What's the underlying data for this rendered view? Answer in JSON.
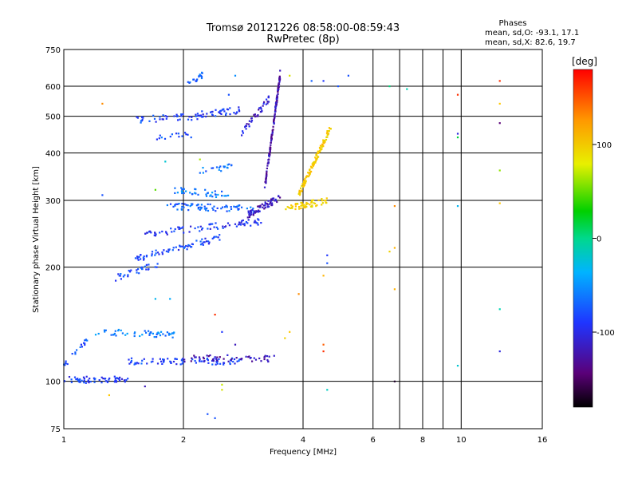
{
  "chart_data": {
    "type": "scatter",
    "title": "Tromsø 20121226 08:58:00-08:59:43",
    "subtitle": "RwPretec (8p)",
    "xlabel": "Frequency [MHz]",
    "ylabel": "Stationary phase Virtual Height [km]",
    "x_scale": "log",
    "y_scale": "log",
    "xlim": [
      1,
      16
    ],
    "ylim": [
      75,
      750
    ],
    "x_ticks": [
      1,
      2,
      4,
      6,
      8,
      10,
      16
    ],
    "x_tick_labels": [
      "1",
      "2",
      "4",
      "6",
      "8",
      "10",
      "16"
    ],
    "x_grid": [
      2,
      4,
      6,
      7,
      8,
      9,
      10
    ],
    "y_ticks": [
      75,
      100,
      200,
      300,
      400,
      500,
      600,
      750
    ],
    "y_tick_labels": [
      "75",
      "100",
      "200",
      "300",
      "400",
      "500",
      "600",
      "750"
    ],
    "y_grid": [
      100,
      200,
      300,
      400,
      500,
      600
    ],
    "grid": true,
    "stats": {
      "heading": "Phases",
      "line_o": "mean, sd,O: -93.1, 17.1",
      "line_x": "mean, sd,X: 82.6, 19.7"
    },
    "colorbar": {
      "label": "[deg]",
      "range": [
        -180,
        180
      ],
      "ticks": [
        100,
        0,
        -100
      ],
      "tick_labels": [
        "100",
        "0",
        "-100"
      ],
      "colormap": "rainbow",
      "placement": "right"
    },
    "series": [
      {
        "traces": [
          {
            "x": [
              1.0,
              1.45
            ],
            "y": [
              101,
              101
            ],
            "phase": -110,
            "n": 60
          },
          {
            "x": [
              1.2,
              1.9
            ],
            "y": [
              135,
              133
            ],
            "phase": -85,
            "n": 50
          },
          {
            "x": [
              1.45,
              2.8
            ],
            "y": [
              113,
              113
            ],
            "phase": -105,
            "n": 80
          },
          {
            "x": [
              2.0,
              3.4
            ],
            "y": [
              115,
              115
            ],
            "phase": -135,
            "n": 50
          },
          {
            "x": [
              1.35,
              1.75
            ],
            "y": [
              188,
              205
            ],
            "phase": -100,
            "n": 30
          },
          {
            "x": [
              1.5,
              2.5
            ],
            "y": [
              210,
              240
            ],
            "phase": -105,
            "n": 70
          },
          {
            "x": [
              1.6,
              3.2
            ],
            "y": [
              245,
              265
            ],
            "phase": -110,
            "n": 80
          },
          {
            "x": [
              1.8,
              3.0
            ],
            "y": [
              290,
              285
            ],
            "phase": -95,
            "n": 70
          },
          {
            "x": [
              1.9,
              2.6
            ],
            "y": [
              320,
              310
            ],
            "phase": -85,
            "n": 40
          },
          {
            "x": [
              1.5,
              2.2
            ],
            "y": [
              490,
              500
            ],
            "phase": -105,
            "n": 40
          },
          {
            "x": [
              2.2,
              2.8
            ],
            "y": [
              505,
              520
            ],
            "phase": -110,
            "n": 40
          },
          {
            "x": [
              2.05,
              2.25
            ],
            "y": [
              615,
              645
            ],
            "phase": -95,
            "n": 20
          },
          {
            "x": [
              1.7,
              2.1
            ],
            "y": [
              440,
              445
            ],
            "phase": -100,
            "n": 15
          },
          {
            "x": [
              2.2,
              2.7
            ],
            "y": [
              360,
              370
            ],
            "phase": -90,
            "n": 20
          },
          {
            "x": [
              2.9,
              3.5
            ],
            "y": [
              275,
              305
            ],
            "phase": -130,
            "n": 70
          },
          {
            "x": [
              3.2,
              3.5
            ],
            "y": [
              320,
              640
            ],
            "phase": -135,
            "n": 140
          },
          {
            "x": [
              2.8,
              3.3
            ],
            "y": [
              450,
              560
            ],
            "phase": -125,
            "n": 40
          },
          {
            "x": [
              3.6,
              4.6
            ],
            "y": [
              285,
              300
            ],
            "phase": 110,
            "n": 60
          },
          {
            "x": [
              3.9,
              4.7
            ],
            "y": [
              310,
              470
            ],
            "phase": 115,
            "n": 120
          },
          {
            "x": [
              1.0,
              1.15
            ],
            "y": [
              110,
              130
            ],
            "phase": -100,
            "n": 20
          }
        ]
      }
    ],
    "scattered_points": [
      {
        "x": 6.6,
        "y": 600,
        "phase": -10
      },
      {
        "x": 7.3,
        "y": 590,
        "phase": -20
      },
      {
        "x": 9.8,
        "y": 570,
        "phase": 170
      },
      {
        "x": 12.5,
        "y": 620,
        "phase": 170
      },
      {
        "x": 9.8,
        "y": 450,
        "phase": -120
      },
      {
        "x": 9.8,
        "y": 440,
        "phase": 0
      },
      {
        "x": 12.5,
        "y": 480,
        "phase": -150
      },
      {
        "x": 12.5,
        "y": 540,
        "phase": 120
      },
      {
        "x": 12.5,
        "y": 360,
        "phase": 60
      },
      {
        "x": 12.5,
        "y": 295,
        "phase": 120
      },
      {
        "x": 9.8,
        "y": 290,
        "phase": -60
      },
      {
        "x": 6.8,
        "y": 290,
        "phase": 150
      },
      {
        "x": 6.8,
        "y": 225,
        "phase": 130
      },
      {
        "x": 6.6,
        "y": 220,
        "phase": 110
      },
      {
        "x": 6.8,
        "y": 175,
        "phase": 130
      },
      {
        "x": 12.5,
        "y": 155,
        "phase": -20
      },
      {
        "x": 12.5,
        "y": 120,
        "phase": -120
      },
      {
        "x": 9.8,
        "y": 110,
        "phase": -40
      },
      {
        "x": 6.8,
        "y": 100,
        "phase": -170
      },
      {
        "x": 4.6,
        "y": 215,
        "phase": -110
      },
      {
        "x": 4.6,
        "y": 205,
        "phase": -100
      },
      {
        "x": 4.6,
        "y": 95,
        "phase": -30
      },
      {
        "x": 4.5,
        "y": 120,
        "phase": 170
      },
      {
        "x": 4.5,
        "y": 125,
        "phase": 160
      },
      {
        "x": 3.9,
        "y": 170,
        "phase": 150
      },
      {
        "x": 2.5,
        "y": 98,
        "phase": 80
      },
      {
        "x": 2.5,
        "y": 95,
        "phase": 90
      },
      {
        "x": 2.4,
        "y": 80,
        "phase": -100
      },
      {
        "x": 2.3,
        "y": 82,
        "phase": -100
      },
      {
        "x": 1.6,
        "y": 97,
        "phase": -130
      },
      {
        "x": 1.3,
        "y": 92,
        "phase": 120
      },
      {
        "x": 1.25,
        "y": 310,
        "phase": -100
      },
      {
        "x": 1.25,
        "y": 540,
        "phase": 150
      },
      {
        "x": 1.7,
        "y": 320,
        "phase": 40
      },
      {
        "x": 1.8,
        "y": 380,
        "phase": -40
      },
      {
        "x": 2.2,
        "y": 385,
        "phase": 70
      },
      {
        "x": 2.6,
        "y": 570,
        "phase": -100
      },
      {
        "x": 2.7,
        "y": 640,
        "phase": -80
      },
      {
        "x": 4.5,
        "y": 620,
        "phase": -110
      },
      {
        "x": 5.2,
        "y": 640,
        "phase": -100
      },
      {
        "x": 4.9,
        "y": 600,
        "phase": -100
      },
      {
        "x": 4.2,
        "y": 620,
        "phase": -95
      },
      {
        "x": 3.5,
        "y": 660,
        "phase": -130
      },
      {
        "x": 3.7,
        "y": 640,
        "phase": 90
      },
      {
        "x": 4.5,
        "y": 190,
        "phase": 130
      },
      {
        "x": 2.4,
        "y": 150,
        "phase": 170
      },
      {
        "x": 3.7,
        "y": 135,
        "phase": 120
      },
      {
        "x": 3.6,
        "y": 130,
        "phase": 110
      },
      {
        "x": 2.5,
        "y": 135,
        "phase": -110
      },
      {
        "x": 2.7,
        "y": 125,
        "phase": -130
      },
      {
        "x": 1.85,
        "y": 165,
        "phase": -70
      },
      {
        "x": 1.7,
        "y": 165,
        "phase": -60
      }
    ]
  }
}
